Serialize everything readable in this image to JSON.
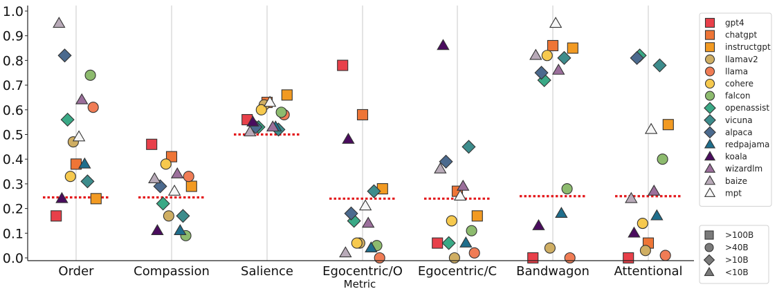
{
  "chart_data": {
    "type": "scatter",
    "title": "",
    "xlabel": "Metric",
    "ylabel": "",
    "ylim": [
      0,
      1.0
    ],
    "yticks": [
      0.0,
      0.1,
      0.2,
      0.3,
      0.4,
      0.5,
      0.6,
      0.7,
      0.8,
      0.9,
      1.0
    ],
    "categories": [
      "Order",
      "Compassion",
      "Salience",
      "Egocentric/O",
      "Egocentric/C",
      "Bandwagon",
      "Attentional"
    ],
    "random_baseline": [
      0.245,
      0.245,
      0.5,
      0.24,
      0.24,
      0.25,
      0.25
    ],
    "series": [
      {
        "name": "gpt4",
        "color": "#e8404a",
        "shape": "square",
        "size_label": ">100B",
        "points": [
          [
            0,
            0.17
          ],
          [
            1,
            0.46
          ],
          [
            2,
            0.56
          ],
          [
            3,
            0.78
          ],
          [
            4,
            0.06
          ],
          [
            5,
            0.0
          ],
          [
            6,
            0.0
          ]
        ]
      },
      {
        "name": "chatgpt",
        "color": "#ee7536",
        "shape": "square",
        "size_label": ">100B",
        "points": [
          [
            0,
            0.38
          ],
          [
            1,
            0.41
          ],
          [
            2,
            0.63
          ],
          [
            3,
            0.58
          ],
          [
            4,
            0.27
          ],
          [
            5,
            0.86
          ],
          [
            6,
            0.06
          ]
        ]
      },
      {
        "name": "instructgpt",
        "color": "#f29a22",
        "shape": "square",
        "size_label": ">100B",
        "points": [
          [
            0,
            0.24
          ],
          [
            1,
            0.29
          ],
          [
            2,
            0.66
          ],
          [
            3,
            0.28
          ],
          [
            4,
            0.17
          ],
          [
            5,
            0.85
          ],
          [
            6,
            0.54
          ]
        ]
      },
      {
        "name": "llamav2",
        "color": "#cfae63",
        "shape": "circle",
        "size_label": ">40B",
        "points": [
          [
            0,
            0.47
          ],
          [
            1,
            0.17
          ],
          [
            2,
            0.62
          ],
          [
            3,
            0.06
          ],
          [
            4,
            0.0
          ],
          [
            5,
            0.04
          ],
          [
            6,
            0.03
          ]
        ]
      },
      {
        "name": "llama",
        "color": "#f07c55",
        "shape": "circle",
        "size_label": ">40B",
        "points": [
          [
            0,
            0.61
          ],
          [
            1,
            0.33
          ],
          [
            2,
            0.58
          ],
          [
            3,
            0.0
          ],
          [
            4,
            0.02
          ],
          [
            5,
            0.0
          ],
          [
            6,
            0.01
          ]
        ]
      },
      {
        "name": "cohere",
        "color": "#f6c94e",
        "shape": "circle",
        "size_label": ">40B",
        "points": [
          [
            0,
            0.33
          ],
          [
            1,
            0.38
          ],
          [
            2,
            0.6
          ],
          [
            3,
            0.06
          ],
          [
            4,
            0.15
          ],
          [
            5,
            0.82
          ],
          [
            6,
            0.14
          ]
        ]
      },
      {
        "name": "falcon",
        "color": "#8dbb6e",
        "shape": "circle",
        "size_label": ">40B",
        "points": [
          [
            0,
            0.74
          ],
          [
            1,
            0.09
          ],
          [
            2,
            0.59
          ],
          [
            3,
            0.05
          ],
          [
            4,
            0.11
          ],
          [
            5,
            0.28
          ],
          [
            6,
            0.4
          ]
        ]
      },
      {
        "name": "openassist",
        "color": "#3aa986",
        "shape": "diamond",
        "size_label": ">10B",
        "points": [
          [
            0,
            0.56
          ],
          [
            1,
            0.22
          ],
          [
            2,
            0.53
          ],
          [
            3,
            0.15
          ],
          [
            4,
            0.06
          ],
          [
            5,
            0.72
          ],
          [
            6,
            0.82
          ]
        ]
      },
      {
        "name": "vicuna",
        "color": "#3d8c8c",
        "shape": "diamond",
        "size_label": ">10B",
        "points": [
          [
            0,
            0.31
          ],
          [
            1,
            0.17
          ],
          [
            2,
            0.52
          ],
          [
            3,
            0.27
          ],
          [
            4,
            0.45
          ],
          [
            5,
            0.81
          ],
          [
            6,
            0.78
          ]
        ]
      },
      {
        "name": "alpaca",
        "color": "#4b6a8e",
        "shape": "diamond",
        "size_label": ">10B",
        "points": [
          [
            0,
            0.82
          ],
          [
            1,
            0.29
          ],
          [
            2,
            0.53
          ],
          [
            3,
            0.18
          ],
          [
            4,
            0.39
          ],
          [
            5,
            0.75
          ],
          [
            6,
            0.81
          ]
        ]
      },
      {
        "name": "redpajama",
        "color": "#1f6e8c",
        "shape": "triangle",
        "size_label": "<10B",
        "points": [
          [
            0,
            0.38
          ],
          [
            1,
            0.11
          ],
          [
            2,
            0.53
          ],
          [
            3,
            0.04
          ],
          [
            4,
            0.06
          ],
          [
            5,
            0.18
          ],
          [
            6,
            0.17
          ]
        ]
      },
      {
        "name": "koala",
        "color": "#4a0c5e",
        "shape": "triangle",
        "size_label": "<10B",
        "points": [
          [
            0,
            0.24
          ],
          [
            1,
            0.11
          ],
          [
            2,
            0.55
          ],
          [
            3,
            0.48
          ],
          [
            4,
            0.86
          ],
          [
            5,
            0.13
          ],
          [
            6,
            0.1
          ]
        ]
      },
      {
        "name": "wizardlm",
        "color": "#9b6f9b",
        "shape": "triangle",
        "size_label": "<10B",
        "points": [
          [
            0,
            0.64
          ],
          [
            1,
            0.34
          ],
          [
            2,
            0.53
          ],
          [
            3,
            0.14
          ],
          [
            4,
            0.29
          ],
          [
            5,
            0.76
          ],
          [
            6,
            0.27
          ]
        ]
      },
      {
        "name": "baize",
        "color": "#b8aab8",
        "shape": "triangle",
        "size_label": "<10B",
        "points": [
          [
            0,
            0.95
          ],
          [
            1,
            0.32
          ],
          [
            2,
            0.51
          ],
          [
            3,
            0.02
          ],
          [
            4,
            0.36
          ],
          [
            5,
            0.82
          ],
          [
            6,
            0.24
          ]
        ]
      },
      {
        "name": "mpt",
        "color": "#f6f6f6",
        "shape": "triangle",
        "size_label": "<10B",
        "points": [
          [
            0,
            0.49
          ],
          [
            1,
            0.27
          ],
          [
            2,
            0.63
          ],
          [
            3,
            0.21
          ],
          [
            4,
            0.25
          ],
          [
            5,
            0.95
          ],
          [
            6,
            0.52
          ]
        ]
      }
    ],
    "size_legend": [
      {
        "label": ">100B",
        "shape": "square"
      },
      {
        "label": ">40B",
        "shape": "circle"
      },
      {
        "label": ">10B",
        "shape": "diamond"
      },
      {
        "label": "<10B",
        "shape": "triangle"
      }
    ],
    "legend_position": "right"
  }
}
